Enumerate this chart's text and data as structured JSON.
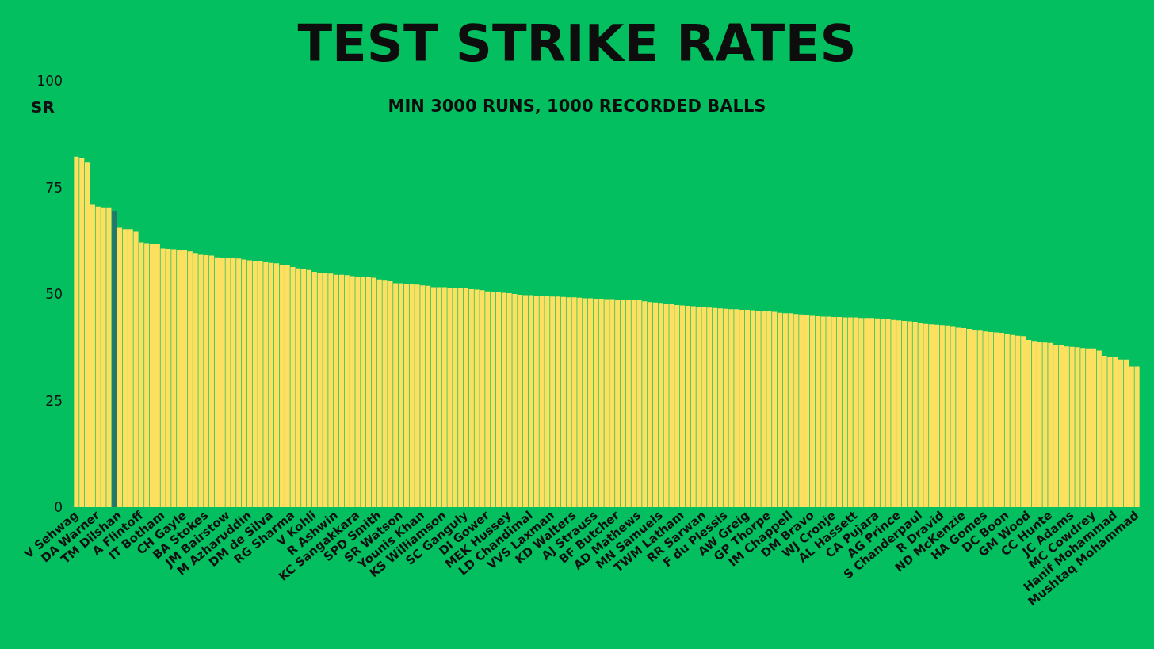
{
  "chart_data": {
    "type": "bar",
    "title": "TEST STRIKE RATES",
    "subtitle": "MIN 3000 RUNS, 1000 RECORDED BALLS",
    "ylabel": "SR",
    "categories": [
      "V Sehwag",
      null,
      null,
      null,
      "DA Warner",
      null,
      null,
      null,
      "TM Dilshan",
      null,
      null,
      null,
      "A Flintoff",
      null,
      null,
      null,
      "IT Botham",
      null,
      null,
      null,
      "CH Gayle",
      null,
      null,
      null,
      "BA Stokes",
      null,
      null,
      null,
      "JM Bairstow",
      null,
      null,
      null,
      "M Azharuddin",
      null,
      null,
      null,
      "DM de Silva",
      null,
      null,
      null,
      "RG Sharma",
      null,
      null,
      null,
      "V Kohli",
      null,
      null,
      null,
      "R Ashwin",
      null,
      null,
      null,
      "KC Sangakkara",
      null,
      null,
      null,
      "SPD Smith",
      null,
      null,
      null,
      "SR Watson",
      null,
      null,
      null,
      "Younis Khan",
      null,
      null,
      null,
      "KS Williamson",
      null,
      null,
      null,
      "SC Ganguly",
      null,
      null,
      null,
      "DI Gower",
      null,
      null,
      null,
      "MEK Hussey",
      null,
      null,
      null,
      "LD Chandimal",
      null,
      null,
      null,
      "VVS Laxman",
      null,
      null,
      null,
      "KD Walters",
      null,
      null,
      null,
      "AJ Strauss",
      null,
      null,
      null,
      "BF Butcher",
      null,
      null,
      null,
      "AD Mathews",
      null,
      null,
      null,
      "MN Samuels",
      null,
      null,
      null,
      "TWM Latham",
      null,
      null,
      null,
      "RR Sarwan",
      null,
      null,
      null,
      "F du Plessis",
      null,
      null,
      null,
      "AW Greig",
      null,
      null,
      null,
      "GP Thorpe",
      null,
      null,
      null,
      "IM Chappell",
      null,
      null,
      null,
      "DM Bravo",
      null,
      null,
      null,
      "WJ Cronje",
      null,
      null,
      null,
      "AL Hassett",
      null,
      null,
      null,
      "CA Pujara",
      null,
      null,
      null,
      "AG Prince",
      null,
      null,
      null,
      "S Chanderpaul",
      null,
      null,
      null,
      "R Dravid",
      null,
      null,
      null,
      "ND McKenzie",
      null,
      null,
      null,
      "HA Gomes",
      null,
      null,
      null,
      "DC Boon",
      null,
      null,
      null,
      "GM Wood",
      null,
      null,
      null,
      "CC Hunte",
      null,
      null,
      null,
      "JC Adams",
      null,
      null,
      null,
      "MC Cowdrey",
      null,
      null,
      null,
      "Hanif Mohammad",
      null,
      null,
      null,
      "Mushtaq Mohammad"
    ],
    "values": [
      82.2,
      81.9,
      80.8,
      70.9,
      70.5,
      70.3,
      70.3,
      69.5,
      65.5,
      65.2,
      65.2,
      64.6,
      62.0,
      61.8,
      61.7,
      61.7,
      60.7,
      60.6,
      60.5,
      60.4,
      60.3,
      60.0,
      59.6,
      59.2,
      59.1,
      59.0,
      58.6,
      58.5,
      58.4,
      58.4,
      58.3,
      58.1,
      57.9,
      57.8,
      57.8,
      57.6,
      57.3,
      57.2,
      56.9,
      56.7,
      56.3,
      56.0,
      55.9,
      55.6,
      55.2,
      55.0,
      55.0,
      54.8,
      54.5,
      54.5,
      54.4,
      54.2,
      54.1,
      54.1,
      54.0,
      53.8,
      53.4,
      53.3,
      53.0,
      52.5,
      52.5,
      52.4,
      52.3,
      52.2,
      52.0,
      51.9,
      51.6,
      51.6,
      51.6,
      51.5,
      51.5,
      51.4,
      51.3,
      51.1,
      51.0,
      50.9,
      50.6,
      50.5,
      50.4,
      50.3,
      50.2,
      50.0,
      49.8,
      49.7,
      49.7,
      49.6,
      49.5,
      49.5,
      49.4,
      49.4,
      49.3,
      49.2,
      49.2,
      49.1,
      49.0,
      49.0,
      48.9,
      48.9,
      48.8,
      48.8,
      48.7,
      48.7,
      48.6,
      48.6,
      48.6,
      48.3,
      48.1,
      48.0,
      47.9,
      47.7,
      47.6,
      47.4,
      47.3,
      47.2,
      47.1,
      47.0,
      46.9,
      46.8,
      46.7,
      46.6,
      46.5,
      46.4,
      46.4,
      46.3,
      46.3,
      46.2,
      46.0,
      46.0,
      45.9,
      45.8,
      45.6,
      45.5,
      45.5,
      45.3,
      45.2,
      45.1,
      44.9,
      44.8,
      44.7,
      44.7,
      44.6,
      44.6,
      44.5,
      44.5,
      44.5,
      44.4,
      44.4,
      44.4,
      44.3,
      44.2,
      44.1,
      43.9,
      43.8,
      43.7,
      43.6,
      43.5,
      43.3,
      43.0,
      42.9,
      42.8,
      42.7,
      42.6,
      42.3,
      42.1,
      42.0,
      41.8,
      41.5,
      41.4,
      41.2,
      41.1,
      41.0,
      40.9,
      40.6,
      40.4,
      40.2,
      40.1,
      39.2,
      39.0,
      38.7,
      38.6,
      38.5,
      38.1,
      38.0,
      37.7,
      37.6,
      37.5,
      37.3,
      37.2,
      37.2,
      36.7,
      35.5,
      35.2,
      35.2,
      34.6,
      34.6,
      33.0,
      33.0
    ],
    "colors": [
      "#fde060",
      "#fde060",
      "#fde060",
      "#fde060",
      "#fde060",
      "#fde060",
      "#fde060",
      "#23786b",
      "#fde060",
      "#fde060",
      "#fde060",
      "#fde060",
      "#fde060",
      "#fde060",
      "#fde060",
      "#fde060",
      "#fde060",
      "#fde060",
      "#fde060",
      "#fde060",
      "#fde060",
      "#fde060",
      "#fde060",
      "#fde060",
      "#fde060",
      "#fde060",
      "#fde060",
      "#fde060",
      "#fde060",
      "#fde060",
      "#fde060",
      "#fde060",
      "#fde060",
      "#fde060",
      "#fde060",
      "#fde060",
      "#fde060",
      "#fde060",
      "#fde060",
      "#fde060",
      "#fde060",
      "#fde060",
      "#fde060",
      "#fde060",
      "#fde060",
      "#fde060",
      "#fde060",
      "#fde060",
      "#fde060",
      "#fde060",
      "#fde060",
      "#fde060",
      "#fde060",
      "#fde060",
      "#fde060",
      "#fde060",
      "#fde060",
      "#fde060",
      "#fde060",
      "#fde060",
      "#fde060",
      "#fde060",
      "#fde060",
      "#fde060",
      "#fde060",
      "#fde060",
      "#fde060",
      "#fde060",
      "#fde060",
      "#fde060",
      "#fde060",
      "#fde060",
      "#fde060",
      "#fde060",
      "#fde060",
      "#fde060",
      "#fde060",
      "#fde060",
      "#fde060",
      "#fde060",
      "#fde060",
      "#fde060",
      "#fde060",
      "#fde060",
      "#fde060",
      "#fde060",
      "#fde060",
      "#fde060",
      "#fde060",
      "#fde060",
      "#fde060",
      "#fde060",
      "#fde060",
      "#fde060",
      "#fde060",
      "#fde060",
      "#fde060",
      "#fde060",
      "#fde060",
      "#fde060",
      "#fde060",
      "#fde060",
      "#fde060",
      "#fde060",
      "#fde060",
      "#fde060",
      "#fde060",
      "#fde060",
      "#fde060",
      "#fde060",
      "#fde060",
      "#fde060",
      "#fde060",
      "#fde060",
      "#fde060",
      "#fde060",
      "#fde060",
      "#fde060",
      "#fde060",
      "#fde060",
      "#fde060",
      "#fde060",
      "#fde060",
      "#fde060",
      "#fde060",
      "#fde060",
      "#fde060",
      "#fde060",
      "#fde060",
      "#fde060",
      "#fde060",
      "#fde060",
      "#fde060",
      "#fde060",
      "#fde060",
      "#fde060",
      "#fde060",
      "#fde060",
      "#fde060",
      "#fde060",
      "#fde060",
      "#fde060",
      "#fde060",
      "#fde060",
      "#fde060",
      "#fde060",
      "#fde060",
      "#fde060",
      "#fde060",
      "#fde060",
      "#fde060",
      "#fde060",
      "#fde060",
      "#fde060",
      "#fde060",
      "#fde060",
      "#fde060",
      "#fde060",
      "#fde060",
      "#fde060",
      "#fde060",
      "#fde060",
      "#fde060",
      "#fde060",
      "#fde060",
      "#fde060",
      "#fde060",
      "#fde060",
      "#fde060",
      "#fde060",
      "#fde060",
      "#fde060",
      "#fde060",
      "#fde060",
      "#fde060",
      "#fde060",
      "#fde060",
      "#fde060",
      "#fde060",
      "#fde060",
      "#fde060",
      "#fde060",
      "#fde060",
      "#fde060",
      "#fde060",
      "#fde060",
      "#fde060",
      "#fde060",
      "#fde060",
      "#fde060",
      "#fde060",
      "#fde060",
      "#fde060",
      "#fde060",
      "#fde060",
      "#fde060",
      "#fde060"
    ],
    "ylim": [
      0,
      100
    ],
    "yticks": [
      0,
      25,
      50,
      75,
      100
    ]
  }
}
